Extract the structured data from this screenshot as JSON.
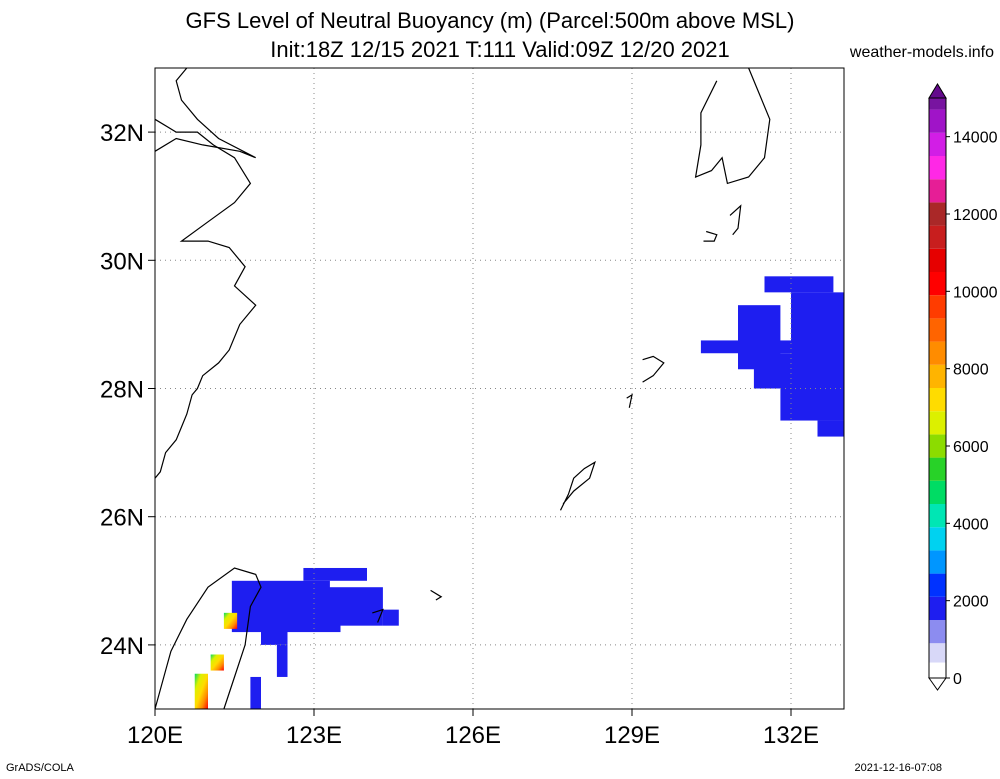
{
  "title": {
    "line1": "GFS Level of Neutral Buoyancy (m) (Parcel:500m above MSL)",
    "line2": "Init:18Z 12/15 2021 T:111 Valid:09Z 12/20 2021"
  },
  "brand": "weather-models.info",
  "footer": {
    "left": "GrADS/COLA",
    "right": "2021-12-16-07:08"
  },
  "map": {
    "lon_range": [
      120,
      133
    ],
    "lat_range": [
      23,
      33
    ],
    "grid": "dotted",
    "x_ticks": [
      {
        "value": 120,
        "label": "120E"
      },
      {
        "value": 123,
        "label": "123E"
      },
      {
        "value": 126,
        "label": "126E"
      },
      {
        "value": 129,
        "label": "129E"
      },
      {
        "value": 132,
        "label": "132E"
      }
    ],
    "y_ticks": [
      {
        "value": 24,
        "label": "24N"
      },
      {
        "value": 26,
        "label": "26N"
      },
      {
        "value": 28,
        "label": "28N"
      },
      {
        "value": 30,
        "label": "30N"
      },
      {
        "value": 32,
        "label": "32N"
      }
    ],
    "colorbar": {
      "labels": [
        "0",
        "2000",
        "4000",
        "6000",
        "8000",
        "10000",
        "12000",
        "14000"
      ],
      "stops": [
        {
          "v": 0,
          "c": "#ffffff"
        },
        {
          "v": 400,
          "c": "#d8d8f8"
        },
        {
          "v": 900,
          "c": "#8c8cf0"
        },
        {
          "v": 1500,
          "c": "#1e1ef0"
        },
        {
          "v": 2100,
          "c": "#0032ff"
        },
        {
          "v": 2700,
          "c": "#0096ff"
        },
        {
          "v": 3300,
          "c": "#00d2f0"
        },
        {
          "v": 3900,
          "c": "#00e6b4"
        },
        {
          "v": 4500,
          "c": "#00dc64"
        },
        {
          "v": 5100,
          "c": "#28d228"
        },
        {
          "v": 5700,
          "c": "#8cdc00"
        },
        {
          "v": 6300,
          "c": "#dcf000"
        },
        {
          "v": 6900,
          "c": "#ffdc00"
        },
        {
          "v": 7500,
          "c": "#ffb400"
        },
        {
          "v": 8100,
          "c": "#ff8c00"
        },
        {
          "v": 8700,
          "c": "#ff6400"
        },
        {
          "v": 9300,
          "c": "#ff3c00"
        },
        {
          "v": 9900,
          "c": "#ff0000"
        },
        {
          "v": 10500,
          "c": "#e60000"
        },
        {
          "v": 11100,
          "c": "#c81e1e"
        },
        {
          "v": 11700,
          "c": "#aa2828"
        },
        {
          "v": 12300,
          "c": "#e61e96"
        },
        {
          "v": 12900,
          "c": "#ff28e6"
        },
        {
          "v": 13500,
          "c": "#d21ee6"
        },
        {
          "v": 14100,
          "c": "#a014c8"
        },
        {
          "v": 14700,
          "c": "#7814a0"
        },
        {
          "v": 15000,
          "c": "#640a8c"
        }
      ],
      "max": 15000
    },
    "fields": [
      {
        "lon": [
          122.0,
          123.3
        ],
        "lat": [
          24.5,
          25.0
        ],
        "value": 1700
      },
      {
        "lon": [
          122.8,
          124.0
        ],
        "lat": [
          25.0,
          25.2
        ],
        "value": 1700
      },
      {
        "lon": [
          122.0,
          124.3
        ],
        "lat": [
          24.3,
          24.9
        ],
        "value": 1800
      },
      {
        "lon": [
          124.3,
          124.6
        ],
        "lat": [
          24.3,
          24.55
        ],
        "value": 1700
      },
      {
        "lon": [
          122.0,
          122.5
        ],
        "lat": [
          24.0,
          24.4
        ],
        "value": 1700
      },
      {
        "lon": [
          122.5,
          123.5
        ],
        "lat": [
          24.2,
          24.4
        ],
        "value": 1700
      },
      {
        "lon": [
          122.3,
          122.5
        ],
        "lat": [
          23.5,
          24.0
        ],
        "value": 1700
      },
      {
        "lon": [
          121.8,
          122.0
        ],
        "lat": [
          23.0,
          23.5
        ],
        "value": 1700
      },
      {
        "lon": [
          121.45,
          122.0
        ],
        "lat": [
          24.2,
          25.0
        ],
        "value": 1600
      },
      {
        "lon": [
          131.5,
          132.8
        ],
        "lat": [
          29.5,
          29.75
        ],
        "value": 1700
      },
      {
        "lon": [
          132.0,
          133.0
        ],
        "lat": [
          28.3,
          29.5
        ],
        "value": 1700
      },
      {
        "lon": [
          131.0,
          131.8
        ],
        "lat": [
          28.3,
          29.3
        ],
        "value": 1700
      },
      {
        "lon": [
          130.3,
          133.0
        ],
        "lat": [
          28.55,
          28.75
        ],
        "value": 1700
      },
      {
        "lon": [
          131.3,
          133.0
        ],
        "lat": [
          28.0,
          28.55
        ],
        "value": 1700
      },
      {
        "lon": [
          131.8,
          133.0
        ],
        "lat": [
          27.5,
          28.0
        ],
        "value": 1700
      },
      {
        "lon": [
          132.5,
          133.0
        ],
        "lat": [
          27.25,
          27.5
        ],
        "value": 1700
      }
    ],
    "rainbow_spots": [
      {
        "lon": [
          121.3,
          121.55
        ],
        "lat": [
          24.25,
          24.5
        ],
        "value": 5000
      },
      {
        "lon": [
          121.05,
          121.3
        ],
        "lat": [
          23.6,
          23.85
        ],
        "value": 5000
      },
      {
        "lon": [
          120.75,
          121.0
        ],
        "lat": [
          23.0,
          23.55
        ],
        "value": 5000
      }
    ],
    "coastlines": [
      {
        "name": "china-coast",
        "pts": [
          [
            120.0,
            26.6
          ],
          [
            120.1,
            26.7
          ],
          [
            120.2,
            27.0
          ],
          [
            120.4,
            27.2
          ],
          [
            120.5,
            27.4
          ],
          [
            120.6,
            27.6
          ],
          [
            120.7,
            27.9
          ],
          [
            120.8,
            28.0
          ],
          [
            120.9,
            28.2
          ],
          [
            121.2,
            28.4
          ],
          [
            121.4,
            28.6
          ],
          [
            121.6,
            29.0
          ],
          [
            121.9,
            29.3
          ],
          [
            121.5,
            29.6
          ],
          [
            121.7,
            29.9
          ],
          [
            121.4,
            30.2
          ],
          [
            121.0,
            30.3
          ],
          [
            120.5,
            30.3
          ],
          [
            121.0,
            30.6
          ],
          [
            121.5,
            30.9
          ],
          [
            121.8,
            31.2
          ],
          [
            121.5,
            31.6
          ],
          [
            121.1,
            31.8
          ],
          [
            120.8,
            32.0
          ],
          [
            120.4,
            32.0
          ],
          [
            120.0,
            32.2
          ]
        ]
      },
      {
        "name": "yangtze-bank",
        "pts": [
          [
            120.0,
            31.7
          ],
          [
            120.4,
            31.9
          ],
          [
            120.9,
            31.8
          ],
          [
            121.6,
            31.7
          ],
          [
            121.9,
            31.6
          ],
          [
            121.2,
            31.9
          ],
          [
            120.8,
            32.2
          ],
          [
            120.5,
            32.5
          ],
          [
            120.4,
            32.8
          ],
          [
            120.6,
            33.0
          ]
        ]
      },
      {
        "name": "taiwan",
        "pts": [
          [
            120.0,
            23.0
          ],
          [
            120.2,
            23.6
          ],
          [
            120.3,
            23.9
          ],
          [
            120.6,
            24.4
          ],
          [
            121.0,
            24.9
          ],
          [
            121.5,
            25.2
          ],
          [
            121.9,
            25.1
          ],
          [
            122.0,
            24.9
          ],
          [
            121.8,
            24.6
          ],
          [
            121.7,
            24.0
          ],
          [
            121.5,
            23.5
          ],
          [
            121.3,
            23.0
          ]
        ]
      },
      {
        "name": "kyushu-south",
        "pts": [
          [
            131.2,
            33.0
          ],
          [
            131.4,
            32.6
          ],
          [
            131.6,
            32.2
          ],
          [
            131.5,
            31.6
          ],
          [
            131.2,
            31.3
          ],
          [
            130.8,
            31.2
          ],
          [
            130.7,
            31.6
          ],
          [
            130.5,
            31.4
          ],
          [
            130.2,
            31.3
          ],
          [
            130.3,
            31.8
          ],
          [
            130.3,
            32.3
          ],
          [
            130.6,
            32.8
          ]
        ]
      },
      {
        "name": "amami-oshima",
        "pts": [
          [
            129.2,
            28.45
          ],
          [
            129.4,
            28.5
          ],
          [
            129.6,
            28.4
          ],
          [
            129.4,
            28.2
          ],
          [
            129.2,
            28.1
          ]
        ]
      },
      {
        "name": "okinawa",
        "pts": [
          [
            127.65,
            26.1
          ],
          [
            127.8,
            26.35
          ],
          [
            127.9,
            26.6
          ],
          [
            128.1,
            26.75
          ],
          [
            128.3,
            26.85
          ],
          [
            128.2,
            26.6
          ],
          [
            127.9,
            26.4
          ],
          [
            127.7,
            26.2
          ]
        ]
      },
      {
        "name": "yakushima",
        "pts": [
          [
            130.4,
            30.45
          ],
          [
            130.6,
            30.4
          ],
          [
            130.55,
            30.3
          ],
          [
            130.35,
            30.3
          ]
        ]
      },
      {
        "name": "tanegashima",
        "pts": [
          [
            130.85,
            30.7
          ],
          [
            131.05,
            30.85
          ],
          [
            131.0,
            30.5
          ],
          [
            130.9,
            30.4
          ]
        ]
      },
      {
        "name": "tokunoshima",
        "pts": [
          [
            128.9,
            27.85
          ],
          [
            129.0,
            27.9
          ],
          [
            128.95,
            27.7
          ]
        ]
      },
      {
        "name": "miyako",
        "pts": [
          [
            125.2,
            24.85
          ],
          [
            125.4,
            24.75
          ],
          [
            125.3,
            24.7
          ]
        ]
      },
      {
        "name": "ishigaki",
        "pts": [
          [
            124.1,
            24.5
          ],
          [
            124.3,
            24.55
          ],
          [
            124.2,
            24.35
          ]
        ]
      }
    ]
  }
}
